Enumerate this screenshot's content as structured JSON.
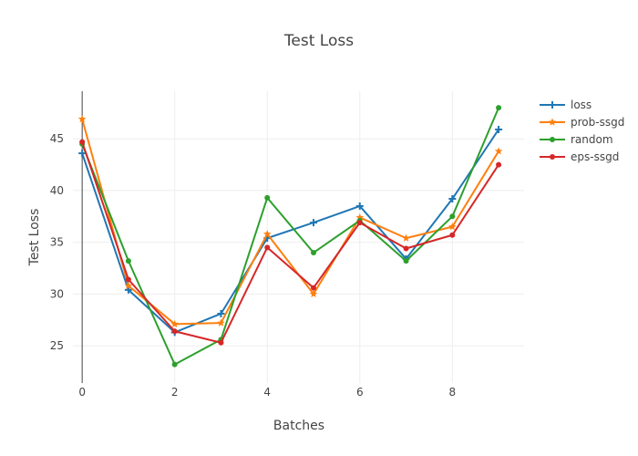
{
  "chart_data": {
    "type": "line",
    "title": "Test Loss",
    "xlabel": "Batches",
    "ylabel": "Test Loss",
    "x": [
      0,
      1,
      2,
      3,
      4,
      5,
      6,
      7,
      8,
      9
    ],
    "xticks": [
      0,
      2,
      4,
      6,
      8
    ],
    "yticks": [
      25,
      30,
      35,
      40,
      45
    ],
    "xlim": [
      -0.2,
      9.55
    ],
    "ylim": [
      21.4,
      49.6
    ],
    "grid": true,
    "legend_position": "top-right",
    "series": [
      {
        "name": "loss",
        "color": "#1f77b4",
        "marker": "cross",
        "values": [
          43.6,
          30.4,
          26.3,
          28.1,
          35.4,
          36.9,
          38.5,
          33.4,
          39.2,
          45.9
        ]
      },
      {
        "name": "prob-ssgd",
        "color": "#ff7f0e",
        "marker": "star",
        "values": [
          46.9,
          30.8,
          27.1,
          27.2,
          35.8,
          30.0,
          37.4,
          35.4,
          36.5,
          43.8
        ]
      },
      {
        "name": "random",
        "color": "#2ca02c",
        "marker": "circle",
        "values": [
          44.5,
          33.2,
          23.2,
          25.6,
          39.3,
          34.0,
          37.1,
          33.2,
          37.5,
          48.0
        ]
      },
      {
        "name": "eps-ssgd",
        "color": "#d62728",
        "marker": "circle",
        "values": [
          44.7,
          31.4,
          26.4,
          25.3,
          34.5,
          30.6,
          36.9,
          34.4,
          35.7,
          42.5
        ]
      }
    ]
  }
}
